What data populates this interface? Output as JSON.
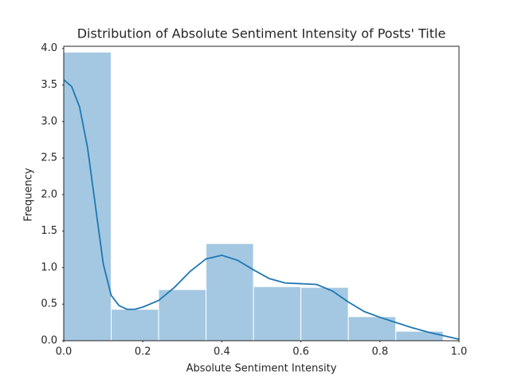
{
  "chart_data": {
    "type": "histogram",
    "title": "Distribution of Absolute Sentiment Intensity of Posts' Title",
    "xlabel": "Absolute Sentiment Intensity",
    "ylabel": "Frequency",
    "bins": [
      0,
      0.12,
      0.24,
      0.36,
      0.48,
      0.6,
      0.72,
      0.84,
      0.96
    ],
    "values": [
      3.95,
      0.43,
      0.7,
      1.33,
      0.74,
      0.73,
      0.33,
      0.13
    ],
    "color": "#a4c8e1",
    "kde": {
      "color": "#1f77b4",
      "x": [
        0,
        0.02,
        0.04,
        0.06,
        0.08,
        0.1,
        0.12,
        0.14,
        0.16,
        0.18,
        0.2,
        0.24,
        0.28,
        0.32,
        0.36,
        0.4,
        0.44,
        0.48,
        0.52,
        0.56,
        0.6,
        0.64,
        0.68,
        0.72,
        0.76,
        0.8,
        0.84,
        0.88,
        0.92,
        0.96,
        1.0
      ],
      "values": [
        3.57,
        3.48,
        3.2,
        2.65,
        1.85,
        1.05,
        0.62,
        0.48,
        0.43,
        0.43,
        0.46,
        0.55,
        0.73,
        0.95,
        1.12,
        1.17,
        1.1,
        0.97,
        0.85,
        0.79,
        0.78,
        0.77,
        0.68,
        0.53,
        0.4,
        0.32,
        0.25,
        0.18,
        0.12,
        0.07,
        0.02
      ]
    },
    "xlim": [
      0,
      1
    ],
    "ylim": [
      0,
      4.03
    ],
    "xticks": [
      {
        "value": 0,
        "label": "0.0"
      },
      {
        "value": 0.2,
        "label": "0.2"
      },
      {
        "value": 0.4,
        "label": "0.4"
      },
      {
        "value": 0.6,
        "label": "0.6"
      },
      {
        "value": 0.8,
        "label": "0.8"
      },
      {
        "value": 1,
        "label": "1.0"
      }
    ],
    "yticks": [
      {
        "value": 0,
        "label": "0.0"
      },
      {
        "value": 0.5,
        "label": "0.5"
      },
      {
        "value": 1,
        "label": "1.0"
      },
      {
        "value": 1.5,
        "label": "1.5"
      },
      {
        "value": 2,
        "label": "2.0"
      },
      {
        "value": 2.5,
        "label": "2.5"
      },
      {
        "value": 3,
        "label": "3.0"
      },
      {
        "value": 3.5,
        "label": "3.5"
      },
      {
        "value": 4,
        "label": "4.0"
      }
    ]
  }
}
